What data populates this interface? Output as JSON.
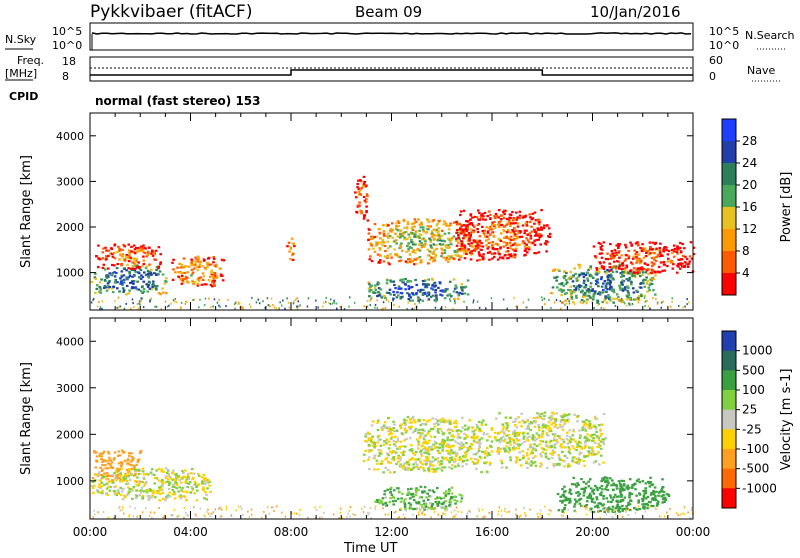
{
  "header": {
    "station": "Pykkvibaer (fitACF)",
    "beam": "Beam 09",
    "date": "10/Jan/2016"
  },
  "status": {
    "nsky_label": "N.Sky",
    "nsearch_label": "N.Search",
    "noise_ticks": [
      "10^5",
      "10^0"
    ],
    "noise_ticks_right": [
      "10^5",
      "10^0"
    ],
    "freq_label": "Freq.",
    "freq_unit": "[MHz]",
    "freq_ticks": [
      "18",
      "8"
    ],
    "nave_label": "Nave",
    "nave_ticks": [
      "60",
      "0"
    ],
    "cpid_label": "CPID",
    "cpid_value": "normal (fast stereo) 153"
  },
  "colors": {
    "power": [
      "#1f3fff",
      "#2040a8",
      "#2c7f5a",
      "#4aa85a",
      "#e8c020",
      "#ff9a00",
      "#ff5a00",
      "#ff0000"
    ],
    "velocity": [
      "#2040b0",
      "#2a6c5a",
      "#3aa040",
      "#80d040",
      "#c8c8c0",
      "#ffd000",
      "#ffa020",
      "#ff6a00",
      "#ff0000"
    ]
  },
  "chart_data": [
    {
      "type": "heatmap",
      "panel": "power",
      "ylabel": "Slant Range [km]",
      "yticks": [
        "4000",
        "3000",
        "2000",
        "1000"
      ],
      "ylim": [
        180,
        4500
      ],
      "colorbar_label": "Power [dB]",
      "colorbar_ticks": [
        "28",
        "24",
        "20",
        "16",
        "12",
        "8",
        "4"
      ],
      "clim": [
        0,
        32
      ],
      "blobs": [
        {
          "t": [
            0.0,
            3.0
          ],
          "r": [
            550,
            1200
          ],
          "level": 26
        },
        {
          "t": [
            0.2,
            2.8
          ],
          "r": [
            1100,
            1650
          ],
          "level": 9
        },
        {
          "t": [
            3.2,
            5.3
          ],
          "r": [
            700,
            1400
          ],
          "level": 12
        },
        {
          "t": [
            7.8,
            8.1
          ],
          "r": [
            1300,
            1800
          ],
          "level": 12
        },
        {
          "t": [
            10.5,
            11.0
          ],
          "r": [
            2200,
            3200
          ],
          "level": 8
        },
        {
          "t": [
            11.0,
            15.5
          ],
          "r": [
            1200,
            2200
          ],
          "level": 16
        },
        {
          "t": [
            11.0,
            15.0
          ],
          "r": [
            400,
            900
          ],
          "level": 27
        },
        {
          "t": [
            14.5,
            18.3
          ],
          "r": [
            1300,
            2400
          ],
          "level": 7
        },
        {
          "t": [
            18.3,
            22.5
          ],
          "r": [
            350,
            1200
          ],
          "level": 24
        },
        {
          "t": [
            20.0,
            24.0
          ],
          "r": [
            1000,
            1700
          ],
          "level": 6
        }
      ]
    },
    {
      "type": "heatmap",
      "panel": "velocity",
      "ylabel": "Slant Range [km]",
      "yticks": [
        "4000",
        "3000",
        "2000",
        "1000"
      ],
      "ylim": [
        180,
        4500
      ],
      "colorbar_label": "Velocity [m s-1]",
      "colorbar_ticks": [
        "1000",
        "500",
        "100",
        "25",
        "-25",
        "-100",
        "-500",
        "-1000"
      ],
      "clim": [
        -1000,
        1000
      ],
      "xlabel": "Time UT",
      "xticks": [
        "00:00",
        "04:00",
        "08:00",
        "12:00",
        "16:00",
        "20:00",
        "00:00"
      ],
      "xlim": [
        0,
        24
      ],
      "blobs": [
        {
          "t": [
            0.0,
            2.0
          ],
          "r": [
            1000,
            1700
          ],
          "vel": -250
        },
        {
          "t": [
            0.0,
            4.8
          ],
          "r": [
            600,
            1300
          ],
          "vel": 0
        },
        {
          "t": [
            10.8,
            16.0
          ],
          "r": [
            1200,
            2400
          ],
          "vel": 0
        },
        {
          "t": [
            11.3,
            14.8
          ],
          "r": [
            400,
            900
          ],
          "vel": 120
        },
        {
          "t": [
            16.0,
            20.5
          ],
          "r": [
            1300,
            2500
          ],
          "vel": 0
        },
        {
          "t": [
            18.5,
            23.0
          ],
          "r": [
            350,
            1100
          ],
          "vel": 300
        }
      ]
    }
  ]
}
